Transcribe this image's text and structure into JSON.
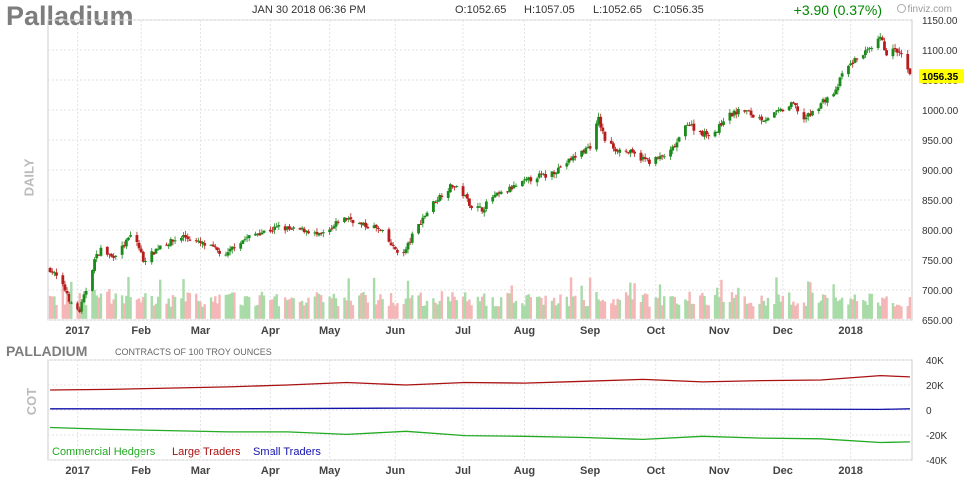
{
  "header": {
    "symbol": "Palladium",
    "datetime": "JAN 30 2018 06:36 PM",
    "open": "O:1052.65",
    "high": "H:1057.05",
    "low": "L:1052.65",
    "close": "C:1056.35",
    "change": "+3.90 (0.37%)",
    "brand": "finviz.com"
  },
  "labels": {
    "daily": "DAILY",
    "cot": "COT",
    "cot_title": "PALLADIUM",
    "cot_subtitle": "CONTRACTS OF 100 TROY OUNCES",
    "last_price": "1056.35"
  },
  "colors": {
    "up": "#1a8a1a",
    "down": "#b81d1d",
    "vol_up": "#a8dba8",
    "vol_down": "#f4b6b6",
    "grid": "#e3e3e3",
    "price_tag": "#ffff00",
    "commercial": "#22aa22",
    "large": "#aa1111",
    "small": "#1111aa"
  },
  "chart_data": [
    {
      "type": "candlestick",
      "ylim": [
        650,
        1150
      ],
      "yticks": [
        "650.00",
        "700.00",
        "750.00",
        "800.00",
        "850.00",
        "900.00",
        "950.00",
        "1000.00",
        "1050.00",
        "1100.00",
        "1150.00"
      ],
      "x_labels": [
        "2017",
        "Feb",
        "Mar",
        "Apr",
        "May",
        "Jun",
        "Jul",
        "Aug",
        "Sep",
        "Oct",
        "Nov",
        "Dec",
        "2018"
      ],
      "close_path": [
        [
          "2016-12-20",
          735
        ],
        [
          "2016-12-23",
          722
        ],
        [
          "2016-12-28",
          695
        ],
        [
          "2016-12-30",
          675
        ],
        [
          "2017-01-03",
          665
        ],
        [
          "2017-01-06",
          700
        ],
        [
          "2017-01-10",
          750
        ],
        [
          "2017-01-13",
          768
        ],
        [
          "2017-01-18",
          755
        ],
        [
          "2017-01-23",
          770
        ],
        [
          "2017-01-27",
          790
        ],
        [
          "2017-01-30",
          780
        ],
        [
          "2017-02-02",
          750
        ],
        [
          "2017-02-06",
          760
        ],
        [
          "2017-02-10",
          775
        ],
        [
          "2017-02-15",
          780
        ],
        [
          "2017-02-21",
          790
        ],
        [
          "2017-02-27",
          780
        ],
        [
          "2017-03-03",
          775
        ],
        [
          "2017-03-08",
          768
        ],
        [
          "2017-03-13",
          755
        ],
        [
          "2017-03-17",
          775
        ],
        [
          "2017-03-22",
          785
        ],
        [
          "2017-03-28",
          795
        ],
        [
          "2017-04-03",
          800
        ],
        [
          "2017-04-07",
          805
        ],
        [
          "2017-04-13",
          800
        ],
        [
          "2017-04-20",
          800
        ],
        [
          "2017-04-26",
          790
        ],
        [
          "2017-05-02",
          800
        ],
        [
          "2017-05-05",
          815
        ],
        [
          "2017-05-10",
          820
        ],
        [
          "2017-05-16",
          808
        ],
        [
          "2017-05-22",
          805
        ],
        [
          "2017-05-26",
          795
        ],
        [
          "2017-05-31",
          770
        ],
        [
          "2017-06-05",
          760
        ],
        [
          "2017-06-09",
          790
        ],
        [
          "2017-06-14",
          820
        ],
        [
          "2017-06-19",
          845
        ],
        [
          "2017-06-23",
          860
        ],
        [
          "2017-06-28",
          875
        ],
        [
          "2017-07-03",
          860
        ],
        [
          "2017-07-07",
          840
        ],
        [
          "2017-07-12",
          835
        ],
        [
          "2017-07-17",
          855
        ],
        [
          "2017-07-21",
          860
        ],
        [
          "2017-07-26",
          870
        ],
        [
          "2017-08-01",
          880
        ],
        [
          "2017-08-07",
          890
        ],
        [
          "2017-08-11",
          890
        ],
        [
          "2017-08-16",
          900
        ],
        [
          "2017-08-22",
          915
        ],
        [
          "2017-08-28",
          930
        ],
        [
          "2017-09-01",
          940
        ],
        [
          "2017-09-05",
          985
        ],
        [
          "2017-09-08",
          950
        ],
        [
          "2017-09-13",
          935
        ],
        [
          "2017-09-19",
          930
        ],
        [
          "2017-09-25",
          920
        ],
        [
          "2017-09-29",
          915
        ],
        [
          "2017-10-04",
          920
        ],
        [
          "2017-10-09",
          930
        ],
        [
          "2017-10-13",
          950
        ],
        [
          "2017-10-17",
          980
        ],
        [
          "2017-10-20",
          970
        ],
        [
          "2017-10-25",
          960
        ],
        [
          "2017-10-31",
          965
        ],
        [
          "2017-11-03",
          985
        ],
        [
          "2017-11-08",
          995
        ],
        [
          "2017-11-13",
          1000
        ],
        [
          "2017-11-17",
          990
        ],
        [
          "2017-11-22",
          985
        ],
        [
          "2017-11-28",
          995
        ],
        [
          "2017-12-01",
          1000
        ],
        [
          "2017-12-06",
          1010
        ],
        [
          "2017-12-11",
          985
        ],
        [
          "2017-12-15",
          995
        ],
        [
          "2017-12-20",
          1015
        ],
        [
          "2017-12-26",
          1030
        ],
        [
          "2017-12-29",
          1060
        ],
        [
          "2018-01-03",
          1080
        ],
        [
          "2018-01-08",
          1095
        ],
        [
          "2018-01-12",
          1100
        ],
        [
          "2018-01-16",
          1120
        ],
        [
          "2018-01-19",
          1095
        ],
        [
          "2018-01-23",
          1100
        ],
        [
          "2018-01-26",
          1090
        ],
        [
          "2018-01-29",
          1065
        ],
        [
          "2018-01-30",
          1056.35
        ]
      ],
      "last_price": 1056.35
    },
    {
      "type": "line",
      "title": "PALLADIUM",
      "subtitle": "CONTRACTS OF 100 TROY OUNCES",
      "ylim": [
        -40000,
        40000
      ],
      "yticks": [
        "40K",
        "20K",
        "0",
        "-20K",
        "-40K"
      ],
      "x_labels": [
        "2017",
        "Feb",
        "Mar",
        "Apr",
        "May",
        "Jun",
        "Jul",
        "Aug",
        "Sep",
        "Oct",
        "Nov",
        "Dec",
        "2018"
      ],
      "series": [
        {
          "name": "Commercial Hedgers",
          "values": [
            [
              "2016-12-20",
              -14000
            ],
            [
              "2017-01-17",
              -15500
            ],
            [
              "2017-02-14",
              -16500
            ],
            [
              "2017-03-14",
              -17500
            ],
            [
              "2017-04-11",
              -17500
            ],
            [
              "2017-05-09",
              -19500
            ],
            [
              "2017-06-06",
              -17000
            ],
            [
              "2017-07-04",
              -20500
            ],
            [
              "2017-08-01",
              -21000
            ],
            [
              "2017-08-29",
              -22000
            ],
            [
              "2017-09-26",
              -23500
            ],
            [
              "2017-10-24",
              -21000
            ],
            [
              "2017-11-21",
              -22500
            ],
            [
              "2017-12-19",
              -23000
            ],
            [
              "2018-01-16",
              -26000
            ],
            [
              "2018-01-30",
              -25500
            ]
          ]
        },
        {
          "name": "Large Traders",
          "values": [
            [
              "2016-12-20",
              16000
            ],
            [
              "2017-01-17",
              16500
            ],
            [
              "2017-02-14",
              17500
            ],
            [
              "2017-03-14",
              18500
            ],
            [
              "2017-04-11",
              20000
            ],
            [
              "2017-05-09",
              22000
            ],
            [
              "2017-06-06",
              20000
            ],
            [
              "2017-07-04",
              22000
            ],
            [
              "2017-08-01",
              21500
            ],
            [
              "2017-08-29",
              23000
            ],
            [
              "2017-09-26",
              24500
            ],
            [
              "2017-10-24",
              22500
            ],
            [
              "2017-11-21",
              23500
            ],
            [
              "2017-12-19",
              24000
            ],
            [
              "2018-01-16",
              27500
            ],
            [
              "2018-01-30",
              26500
            ]
          ]
        },
        {
          "name": "Small Traders",
          "values": [
            [
              "2016-12-20",
              1000
            ],
            [
              "2017-03-14",
              1000
            ],
            [
              "2017-06-06",
              1500
            ],
            [
              "2017-09-26",
              1000
            ],
            [
              "2018-01-16",
              500
            ],
            [
              "2018-01-30",
              1000
            ]
          ]
        }
      ]
    }
  ]
}
